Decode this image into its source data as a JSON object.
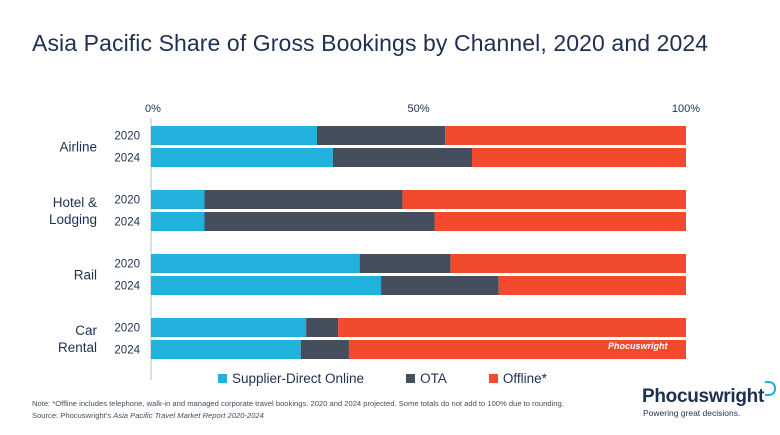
{
  "title": "Asia Pacific Share of Gross Bookings by Channel, 2020 and 2024",
  "chart_data": {
    "type": "bar",
    "orientation": "horizontal",
    "stacked": true,
    "x_ticks": [
      "0%",
      "50%",
      "100%"
    ],
    "xlim": [
      0,
      100
    ],
    "legend_position": "bottom",
    "categories": [
      {
        "label": "Airline",
        "bars": [
          {
            "year": "2020",
            "values": [
              31,
              24,
              45
            ]
          },
          {
            "year": "2024",
            "values": [
              34,
              26,
              40
            ]
          }
        ]
      },
      {
        "label": "Hotel & Lodging",
        "bars": [
          {
            "year": "2020",
            "values": [
              10,
              37,
              53
            ]
          },
          {
            "year": "2024",
            "values": [
              10,
              43,
              47
            ]
          }
        ]
      },
      {
        "label": "Rail",
        "bars": [
          {
            "year": "2020",
            "values": [
              39,
              17,
              44
            ]
          },
          {
            "year": "2024",
            "values": [
              43,
              22,
              35
            ]
          }
        ]
      },
      {
        "label": "Car Rental",
        "bars": [
          {
            "year": "2020",
            "values": [
              29,
              6,
              65
            ]
          },
          {
            "year": "2024",
            "values": [
              28,
              9,
              63
            ]
          }
        ]
      }
    ],
    "series": [
      {
        "name": "Supplier-Direct Online",
        "color": "#22b0dd"
      },
      {
        "name": "OTA",
        "color": "#444e5c"
      },
      {
        "name": "Offline*",
        "color": "#f24a2c"
      }
    ]
  },
  "watermark": "Phocuswright",
  "note": "Note: *Offline includes telephone, walk-in and managed corporate travel bookings. 2020 and 2024 projected. Some totals do not add to 100% due to rounding.",
  "source_prefix": "Source: Phocuswright's",
  "source_title": "Asia Pacific Travel Market Report 2020-2024",
  "brand": {
    "name": "Phocuswright",
    "tagline": "Powering great decisions."
  }
}
